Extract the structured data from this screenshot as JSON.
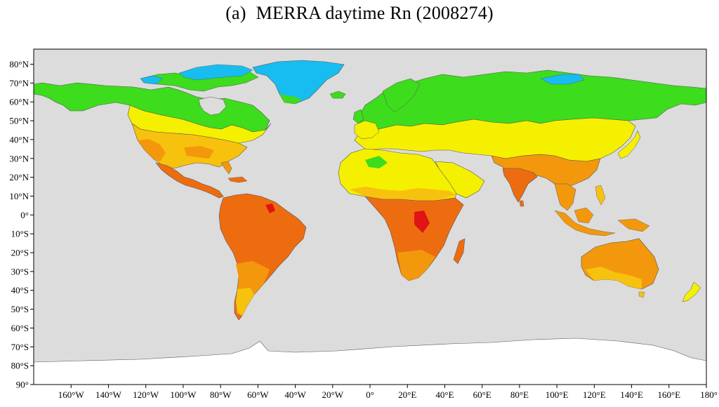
{
  "title": {
    "panel": "(a)",
    "text": "MERRA daytime Rn (2008274)"
  },
  "map": {
    "projection": "equirectangular",
    "background_color": "#dcdcdc",
    "border_color": "#555555",
    "lat_ticks": [
      "80°N",
      "70°N",
      "60°N",
      "50°N",
      "40°N",
      "30°N",
      "20°N",
      "10°N",
      "0°",
      "10°S",
      "20°S",
      "30°S",
      "40°S",
      "50°S",
      "60°S",
      "70°S",
      "80°S",
      "90°"
    ],
    "lat_values": [
      80,
      70,
      60,
      50,
      40,
      30,
      20,
      10,
      0,
      -10,
      -20,
      -30,
      -40,
      -50,
      -60,
      -70,
      -80,
      -90
    ],
    "lon_ticks": [
      "160°W",
      "140°W",
      "120°W",
      "100°W",
      "80°W",
      "60°W",
      "40°W",
      "20°W",
      "0°",
      "20°E",
      "40°E",
      "60°E",
      "80°E",
      "100°E",
      "120°E",
      "140°E",
      "160°E",
      "180°"
    ],
    "lon_values": [
      -160,
      -140,
      -120,
      -100,
      -80,
      -60,
      -40,
      -20,
      0,
      20,
      40,
      60,
      80,
      100,
      120,
      140,
      160,
      180
    ],
    "palette": {
      "ice": "#17bdf0",
      "green": "#3ddc1c",
      "yellow": "#f5f000",
      "light_orange": "#f7c20e",
      "orange": "#f3980c",
      "deep_orange": "#ee6c10",
      "red": "#e01414",
      "antarctica": "#ffffff"
    }
  }
}
